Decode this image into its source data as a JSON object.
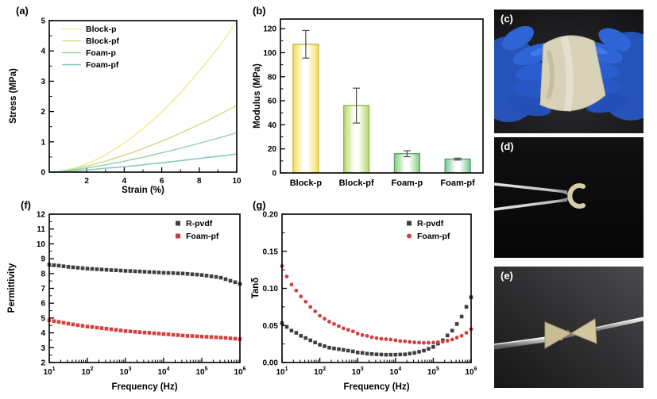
{
  "panel_labels": {
    "a": "(a)",
    "b": "(b)",
    "c": "(c)",
    "d": "(d)",
    "e": "(e)",
    "f": "(f)",
    "g": "(g)"
  },
  "photos": [
    {
      "id": "c",
      "label": "(c)",
      "scene": "blue-gloved-hands-bending-beige-foam-sheet"
    },
    {
      "id": "d",
      "label": "(d)",
      "scene": "tweezers-holding-curled-foam-strip"
    },
    {
      "id": "e",
      "label": "(e)",
      "scene": "metal-rod-with-twisted-foam-piece"
    }
  ],
  "chart_data": [
    {
      "id": "a",
      "type": "line",
      "title": "",
      "xlabel": "Strain (%)",
      "ylabel": "Stress (MPa)",
      "xlim": [
        0,
        10
      ],
      "ylim": [
        0,
        5
      ],
      "xticks": {
        "values": [
          2,
          4,
          6,
          8,
          10
        ],
        "labels": [
          "2",
          "4",
          "6",
          "8",
          "10"
        ],
        "minor": [
          1,
          3,
          5,
          7,
          9
        ]
      },
      "yticks": {
        "values": [
          0,
          1,
          2,
          3,
          4,
          5
        ],
        "labels": [
          "0",
          "1",
          "2",
          "3",
          "4",
          "5"
        ],
        "minor": [
          0.5,
          1.5,
          2.5,
          3.5,
          4.5
        ]
      },
      "x": [
        0,
        0.5,
        1,
        1.5,
        2,
        2.5,
        3,
        3.5,
        4,
        4.5,
        5,
        5.5,
        6,
        6.5,
        7,
        7.5,
        8,
        8.5,
        9,
        9.5,
        10
      ],
      "series": [
        {
          "name": "Block-p",
          "color": "#f1ea97",
          "values": [
            0,
            0.02,
            0.08,
            0.16,
            0.28,
            0.41,
            0.57,
            0.76,
            0.96,
            1.19,
            1.44,
            1.7,
            1.99,
            2.3,
            2.62,
            2.97,
            3.33,
            3.71,
            4.1,
            4.52,
            5.0
          ]
        },
        {
          "name": "Block-pf",
          "color": "#d5d98c",
          "values": [
            0,
            0.02,
            0.07,
            0.13,
            0.2,
            0.28,
            0.36,
            0.46,
            0.56,
            0.66,
            0.78,
            0.9,
            1.02,
            1.15,
            1.29,
            1.43,
            1.57,
            1.72,
            1.88,
            2.04,
            2.2
          ]
        },
        {
          "name": "Foam-p",
          "color": "#9cd0ac",
          "values": [
            0,
            0.02,
            0.05,
            0.09,
            0.14,
            0.19,
            0.24,
            0.3,
            0.36,
            0.43,
            0.49,
            0.56,
            0.64,
            0.71,
            0.79,
            0.87,
            0.95,
            1.04,
            1.12,
            1.21,
            1.3
          ]
        },
        {
          "name": "Foam-pf",
          "color": "#81c6bd",
          "values": [
            0,
            0.01,
            0.03,
            0.05,
            0.07,
            0.1,
            0.13,
            0.15,
            0.18,
            0.21,
            0.24,
            0.28,
            0.31,
            0.34,
            0.38,
            0.41,
            0.45,
            0.49,
            0.52,
            0.56,
            0.6
          ]
        }
      ],
      "legend": {
        "position": "top-left",
        "marker": "line"
      }
    },
    {
      "id": "b",
      "type": "bar",
      "title": "",
      "xlabel": "",
      "ylabel": "Modulus (MPa)",
      "ylim": [
        0,
        128
      ],
      "yticks": {
        "values": [
          0,
          20,
          40,
          60,
          80,
          100,
          120
        ],
        "labels": [
          "0",
          "20",
          "40",
          "60",
          "80",
          "100",
          "120"
        ],
        "minor": [
          10,
          30,
          50,
          70,
          90,
          110
        ]
      },
      "categories": [
        "Block-p",
        "Block-pf",
        "Foam-p",
        "Foam-pf"
      ],
      "values": [
        107,
        56,
        16,
        11.5
      ],
      "errors": [
        11.5,
        14.5,
        2.5,
        0.8
      ],
      "bar_styles": [
        {
          "edge": "#efdf55",
          "border": "#c9ba3b"
        },
        {
          "edge": "#b5d765",
          "border": "#90b94a"
        },
        {
          "edge": "#85cb80",
          "border": "#5ba661"
        },
        {
          "edge": "#79c694",
          "border": "#52a274"
        }
      ]
    },
    {
      "id": "f",
      "type": "scatter",
      "title": "",
      "xscale": "log",
      "xlabel": "Frequency (Hz)",
      "ylabel": "Permittivity",
      "xlim_log": [
        1,
        6
      ],
      "ylim": [
        2,
        12
      ],
      "xticks_log": [
        1,
        2,
        3,
        4,
        5,
        6
      ],
      "yticks": {
        "values": [
          2,
          3,
          4,
          5,
          6,
          7,
          8,
          9,
          10,
          11,
          12
        ],
        "labels": [
          "2",
          "3",
          "4",
          "5",
          "6",
          "7",
          "8",
          "9",
          "10",
          "11",
          "12"
        ],
        "minor": [
          2.5,
          3.5,
          4.5,
          5.5,
          6.5,
          7.5,
          8.5,
          9.5,
          10.5,
          11.5
        ]
      },
      "logx": [
        1,
        1.125,
        1.25,
        1.375,
        1.5,
        1.625,
        1.75,
        1.875,
        2,
        2.125,
        2.25,
        2.375,
        2.5,
        2.625,
        2.75,
        2.875,
        3,
        3.125,
        3.25,
        3.375,
        3.5,
        3.625,
        3.75,
        3.875,
        4,
        4.125,
        4.25,
        4.375,
        4.5,
        4.625,
        4.75,
        4.875,
        5,
        5.125,
        5.25,
        5.375,
        5.5,
        5.625,
        5.75,
        5.875,
        6
      ],
      "series": [
        {
          "name": "R-pvdf",
          "color": "#3f3f3f",
          "marker": "square",
          "y": [
            8.6,
            8.56,
            8.53,
            8.49,
            8.45,
            8.42,
            8.39,
            8.36,
            8.33,
            8.31,
            8.29,
            8.27,
            8.25,
            8.23,
            8.22,
            8.2,
            8.18,
            8.17,
            8.15,
            8.14,
            8.12,
            8.1,
            8.09,
            8.07,
            8.05,
            8.04,
            8.03,
            8.01,
            8.0,
            7.98,
            7.95,
            7.93,
            7.9,
            7.86,
            7.81,
            7.77,
            7.72,
            7.62,
            7.51,
            7.41,
            7.3
          ]
        },
        {
          "name": "Foam-pf",
          "color": "#d24040",
          "marker": "square",
          "y": [
            4.85,
            4.79,
            4.74,
            4.68,
            4.62,
            4.57,
            4.52,
            4.47,
            4.42,
            4.39,
            4.35,
            4.32,
            4.28,
            4.24,
            4.2,
            4.16,
            4.12,
            4.1,
            4.07,
            4.05,
            4.02,
            4.0,
            3.97,
            3.95,
            3.92,
            3.9,
            3.87,
            3.85,
            3.82,
            3.8,
            3.79,
            3.77,
            3.75,
            3.73,
            3.72,
            3.7,
            3.68,
            3.66,
            3.63,
            3.61,
            3.58
          ]
        }
      ],
      "legend": {
        "position": "top-right"
      }
    },
    {
      "id": "g",
      "type": "scatter",
      "title": "",
      "xscale": "log",
      "xlabel": "Frequency (Hz)",
      "ylabel": "Tanδ",
      "xlim_log": [
        1,
        6
      ],
      "ylim": [
        0,
        0.2
      ],
      "xticks_log": [
        1,
        2,
        3,
        4,
        5,
        6
      ],
      "yticks": {
        "values": [
          0,
          0.05,
          0.1,
          0.15,
          0.2
        ],
        "labels": [
          "0.00",
          "0.05",
          "0.10",
          "0.15",
          "0.20"
        ],
        "minor": [
          0.025,
          0.075,
          0.125,
          0.175
        ]
      },
      "logx": [
        1,
        1.125,
        1.25,
        1.375,
        1.5,
        1.625,
        1.75,
        1.875,
        2,
        2.125,
        2.25,
        2.375,
        2.5,
        2.625,
        2.75,
        2.875,
        3,
        3.125,
        3.25,
        3.375,
        3.5,
        3.625,
        3.75,
        3.875,
        4,
        4.125,
        4.25,
        4.375,
        4.5,
        4.625,
        4.75,
        4.875,
        5,
        5.125,
        5.25,
        5.375,
        5.5,
        5.625,
        5.75,
        5.875,
        6
      ],
      "series": [
        {
          "name": "R-pvdf",
          "color": "#3f3f3f",
          "marker": "square",
          "y": [
            0.053,
            0.048,
            0.043,
            0.04,
            0.036,
            0.033,
            0.03,
            0.027,
            0.024,
            0.022,
            0.02,
            0.019,
            0.018,
            0.017,
            0.016,
            0.015,
            0.0135,
            0.013,
            0.012,
            0.0115,
            0.011,
            0.0108,
            0.0105,
            0.0105,
            0.0105,
            0.0108,
            0.011,
            0.012,
            0.013,
            0.0145,
            0.016,
            0.0185,
            0.021,
            0.0255,
            0.03,
            0.0365,
            0.043,
            0.052,
            0.062,
            0.075,
            0.088
          ]
        },
        {
          "name": "Foam-pf",
          "color": "#d24040",
          "marker": "circle",
          "y": [
            0.13,
            0.116,
            0.105,
            0.097,
            0.089,
            0.082,
            0.075,
            0.069,
            0.063,
            0.059,
            0.055,
            0.052,
            0.049,
            0.046,
            0.044,
            0.042,
            0.039,
            0.037,
            0.036,
            0.034,
            0.033,
            0.032,
            0.0315,
            0.031,
            0.03,
            0.029,
            0.0285,
            0.0278,
            0.0272,
            0.0268,
            0.0265,
            0.0266,
            0.0268,
            0.0274,
            0.028,
            0.0295,
            0.031,
            0.0335,
            0.036,
            0.04,
            0.045
          ]
        }
      ],
      "legend": {
        "position": "top-right"
      }
    }
  ]
}
